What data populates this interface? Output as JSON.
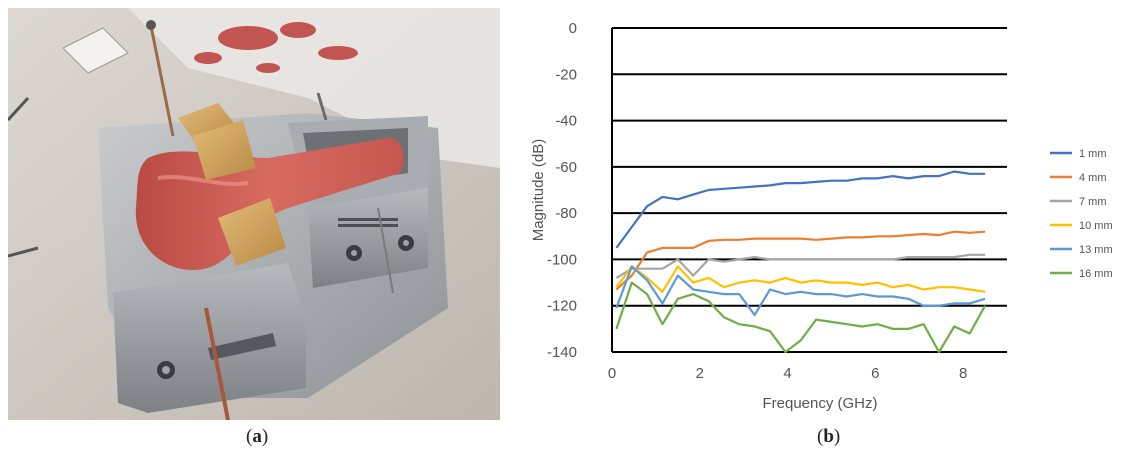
{
  "captions": {
    "a": "a",
    "b": "b"
  },
  "photo": {
    "subject": "bone specimen clamped in aluminium fixture with probe rods",
    "icons": [
      "bone-specimen",
      "wooden-block",
      "metal-fixture",
      "probe-rod",
      "screw"
    ]
  },
  "chart_data": {
    "type": "line",
    "xlabel": "Frequency (GHz)",
    "ylabel": "Magnitude (dB)",
    "xlim": [
      0,
      9
    ],
    "ylim": [
      -140,
      0
    ],
    "xticks": [
      0,
      2,
      4,
      6,
      8
    ],
    "yticks": [
      0,
      -20,
      -40,
      -60,
      -80,
      -100,
      -120,
      -140
    ],
    "grid": "horizontal",
    "legend_position": "right",
    "x": [
      0.1,
      0.45,
      0.8,
      1.15,
      1.5,
      1.85,
      2.2,
      2.55,
      2.9,
      3.25,
      3.6,
      3.95,
      4.3,
      4.65,
      5.0,
      5.35,
      5.7,
      6.05,
      6.4,
      6.75,
      7.1,
      7.45,
      7.8,
      8.15,
      8.5
    ],
    "series": [
      {
        "name": "1 mm",
        "color": "#4472c4",
        "values": [
          -95,
          -86,
          -77,
          -73,
          -74,
          -72,
          -70,
          -69.5,
          -69,
          -68.5,
          -68,
          -67,
          -67,
          -66.5,
          -66,
          -66,
          -65,
          -65,
          -64,
          -65,
          -64,
          -64,
          -62,
          -63,
          -63
        ]
      },
      {
        "name": "4 mm",
        "color": "#ed7d31",
        "values": [
          -113,
          -107,
          -97,
          -95,
          -95,
          -95,
          -92,
          -91.5,
          -91.5,
          -91,
          -91,
          -91,
          -91,
          -91.5,
          -91,
          -90.5,
          -90.5,
          -90,
          -90,
          -89.5,
          -89,
          -89.5,
          -88,
          -88.5,
          -88
        ]
      },
      {
        "name": "7 mm",
        "color": "#a5a5a5",
        "values": [
          -108,
          -104,
          -104,
          -104,
          -100,
          -107,
          -100,
          -101,
          -100,
          -99,
          -100,
          -100,
          -100,
          -100,
          -100,
          -100,
          -100,
          -100,
          -100,
          -99,
          -99,
          -99,
          -99,
          -98,
          -98
        ]
      },
      {
        "name": "10 mm",
        "color": "#ffc000",
        "values": [
          -112,
          -103,
          -108,
          -114,
          -103,
          -110,
          -108,
          -112,
          -110,
          -109,
          -110,
          -108,
          -110,
          -109,
          -110,
          -110,
          -111,
          -110,
          -112,
          -111,
          -113,
          -112,
          -112,
          -113,
          -114
        ]
      },
      {
        "name": "13 mm",
        "color": "#5b9bd5",
        "values": [
          -121,
          -103,
          -109,
          -119,
          -107,
          -113,
          -114,
          -115,
          -115,
          -124,
          -113,
          -115,
          -114,
          -115,
          -115,
          -116,
          -115,
          -116,
          -116,
          -117,
          -120,
          -120,
          -119,
          -119,
          -117
        ]
      },
      {
        "name": "16 mm",
        "color": "#70ad47",
        "values": [
          -130,
          -110,
          -115,
          -128,
          -117,
          -115,
          -118,
          -125,
          -128,
          -129,
          -131,
          -140,
          -135,
          -126,
          -127,
          -128,
          -129,
          -128,
          -130,
          -130,
          -128,
          -140,
          -129,
          -132,
          -120
        ]
      }
    ]
  }
}
